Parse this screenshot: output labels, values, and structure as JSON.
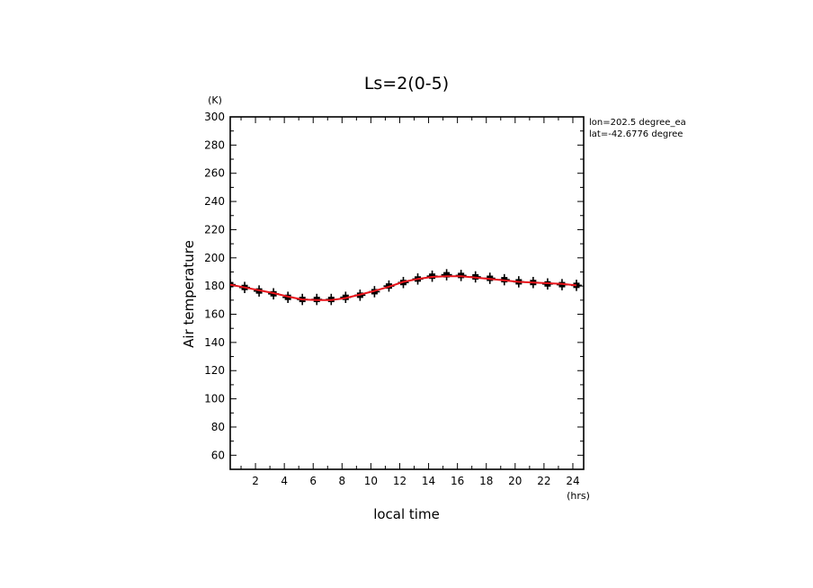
{
  "chart_data": {
    "type": "line",
    "title": "Ls=2(0-5)",
    "xlabel": "local time",
    "ylabel": "Air temperature",
    "x_unit": "(hrs)",
    "y_unit": "(K)",
    "xlim": [
      0.25,
      24.75
    ],
    "ylim": [
      50,
      300
    ],
    "x_ticks": [
      2,
      4,
      6,
      8,
      10,
      12,
      14,
      16,
      18,
      20,
      22,
      24
    ],
    "y_ticks": [
      60,
      80,
      100,
      120,
      140,
      160,
      180,
      200,
      220,
      240,
      260,
      280,
      300
    ],
    "annotations": [
      "lon=202.5 degree_ea",
      "lat=-42.6776 degree"
    ],
    "grid": false,
    "series": [
      {
        "style": "red line",
        "color": "#e8141b",
        "x": [
          0.25,
          1.25,
          2.25,
          3.25,
          4.25,
          5.25,
          6.25,
          7.25,
          8.25,
          9.25,
          10.25,
          11.25,
          12.25,
          13.25,
          14.25,
          15.25,
          16.25,
          17.25,
          18.25,
          19.25,
          20.25,
          21.25,
          22.25,
          23.25,
          24.25
        ],
        "values": [
          181,
          179,
          177,
          175,
          172.5,
          170.5,
          170,
          170,
          171.5,
          174,
          176.5,
          179.5,
          183,
          185,
          186.5,
          187,
          187,
          186,
          185,
          184,
          183,
          182.5,
          182,
          181.5,
          180.5
        ]
      },
      {
        "style": "black markers with error bars",
        "color": "#000000",
        "x": [
          0.25,
          1.25,
          2.25,
          3.25,
          4.25,
          5.25,
          6.25,
          7.25,
          8.25,
          9.25,
          10.25,
          11.25,
          12.25,
          13.25,
          14.25,
          15.25,
          16.25,
          17.25,
          18.25,
          19.25,
          20.25,
          21.25,
          22.25,
          23.25,
          24.25
        ],
        "values": [
          181,
          179,
          176.5,
          174.5,
          172,
          170.5,
          170.5,
          170.5,
          172,
          173.5,
          176,
          180,
          182.5,
          185,
          187,
          188,
          187.5,
          186.5,
          185.5,
          184.5,
          183,
          182.5,
          181.5,
          181,
          180.5
        ],
        "error": [
          4,
          4,
          4,
          4,
          4,
          4,
          4,
          4,
          4,
          4,
          4,
          4,
          4,
          4,
          4,
          4,
          4,
          4,
          4,
          4,
          4,
          4,
          4,
          4,
          4
        ]
      }
    ]
  }
}
